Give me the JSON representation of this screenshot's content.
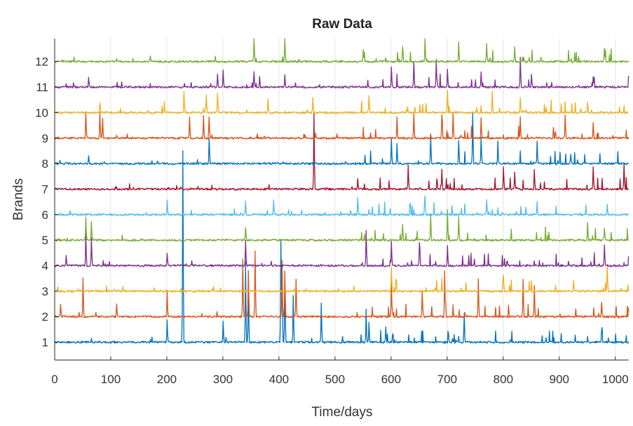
{
  "chart_data": {
    "type": "line",
    "title": "Raw Data",
    "xlabel": "Time/days",
    "ylabel": "Brands",
    "xlim": [
      0,
      1024
    ],
    "ylim": [
      0.3,
      12.9
    ],
    "xticks": [
      "0",
      "100",
      "200",
      "300",
      "400",
      "500",
      "600",
      "700",
      "800",
      "900",
      "1000"
    ],
    "yticks": [
      "1",
      "2",
      "3",
      "4",
      "5",
      "6",
      "7",
      "8",
      "9",
      "10",
      "11",
      "12"
    ],
    "grid": "horizontal",
    "n_days": 1024,
    "series": [
      {
        "baseline": 1,
        "color": "#0072BD",
        "spikes": [
          [
            228,
            7.5
          ],
          [
            340,
            3.2
          ],
          [
            345,
            2.2
          ],
          [
            403,
            4.0
          ],
          [
            405,
            3.0
          ],
          [
            410,
            2.5
          ],
          [
            425,
            1.8
          ],
          [
            475,
            1.5
          ],
          [
            555,
            1.0
          ],
          [
            560,
            0.8
          ],
          [
            590,
            0.6
          ],
          [
            200,
            0.9
          ],
          [
            300,
            0.8
          ],
          [
            730,
            0.7
          ],
          [
            975,
            0.5
          ]
        ]
      },
      {
        "baseline": 2,
        "color": "#D95319",
        "spikes": [
          [
            50,
            1.5
          ],
          [
            200,
            1.0
          ],
          [
            335,
            2.2
          ],
          [
            345,
            1.8
          ],
          [
            357,
            2.6
          ],
          [
            405,
            2.2
          ],
          [
            410,
            1.8
          ],
          [
            430,
            1.5
          ],
          [
            600,
            1.4
          ],
          [
            655,
            1.0
          ],
          [
            695,
            1.8
          ],
          [
            755,
            1.5
          ],
          [
            835,
            1.5
          ],
          [
            855,
            1.2
          ],
          [
            975,
            0.6
          ],
          [
            10,
            0.5
          ],
          [
            110,
            0.5
          ]
        ]
      },
      {
        "baseline": 3,
        "color": "#EDB120",
        "spikes": [
          [
            600,
            0.9
          ],
          [
            800,
            0.6
          ],
          [
            925,
            0.4
          ],
          [
            985,
            1.0
          ]
        ]
      },
      {
        "baseline": 4,
        "color": "#7E2F8E",
        "spikes": [
          [
            55,
            1.3
          ],
          [
            65,
            1.1
          ],
          [
            340,
            1.0
          ],
          [
            555,
            1.4
          ],
          [
            600,
            1.0
          ],
          [
            650,
            0.9
          ],
          [
            700,
            0.8
          ],
          [
            980,
            0.8
          ],
          [
            200,
            0.5
          ],
          [
            20,
            0.4
          ]
        ]
      },
      {
        "baseline": 5,
        "color": "#77AC30",
        "spikes": [
          [
            55,
            0.9
          ],
          [
            65,
            0.7
          ],
          [
            340,
            0.5
          ],
          [
            620,
            0.6
          ],
          [
            670,
            1.0
          ],
          [
            700,
            1.2
          ],
          [
            720,
            0.9
          ],
          [
            950,
            0.7
          ],
          [
            980,
            0.5
          ]
        ]
      },
      {
        "baseline": 6,
        "color": "#4DBEEE",
        "spikes": [
          [
            200,
            0.6
          ],
          [
            340,
            0.5
          ],
          [
            390,
            0.6
          ],
          [
            540,
            0.7
          ],
          [
            660,
            0.7
          ],
          [
            770,
            0.6
          ],
          [
            860,
            0.5
          ],
          [
            985,
            0.4
          ]
        ]
      },
      {
        "baseline": 7,
        "color": "#A2142F",
        "spikes": [
          [
            462,
            3.0
          ],
          [
            540,
            0.4
          ],
          [
            630,
            0.9
          ],
          [
            690,
            0.8
          ],
          [
            800,
            0.9
          ],
          [
            820,
            0.7
          ],
          [
            855,
            0.8
          ],
          [
            960,
            0.9
          ],
          [
            1015,
            1.0
          ]
        ]
      },
      {
        "baseline": 8,
        "color": "#0072BD",
        "spikes": [
          [
            60,
            0.3
          ],
          [
            275,
            1.0
          ],
          [
            600,
            1.0
          ],
          [
            610,
            0.8
          ],
          [
            670,
            1.1
          ],
          [
            720,
            0.9
          ],
          [
            745,
            2.0
          ],
          [
            760,
            1.0
          ],
          [
            790,
            0.9
          ],
          [
            860,
            0.9
          ],
          [
            920,
            0.4
          ]
        ]
      },
      {
        "baseline": 9,
        "color": "#D95319",
        "spikes": [
          [
            55,
            1.0
          ],
          [
            80,
            1.0
          ],
          [
            85,
            0.8
          ],
          [
            240,
            0.8
          ],
          [
            265,
            0.9
          ],
          [
            275,
            0.8
          ],
          [
            610,
            0.8
          ],
          [
            640,
            1.0
          ],
          [
            690,
            0.9
          ],
          [
            710,
            1.0
          ],
          [
            760,
            0.8
          ],
          [
            830,
            0.8
          ],
          [
            910,
            0.9
          ],
          [
            960,
            0.6
          ]
        ]
      },
      {
        "baseline": 10,
        "color": "#EDB120",
        "spikes": [
          [
            80,
            0.4
          ],
          [
            195,
            0.4
          ],
          [
            230,
            0.8
          ],
          [
            270,
            0.7
          ],
          [
            290,
            0.8
          ],
          [
            380,
            0.5
          ],
          [
            460,
            0.6
          ],
          [
            560,
            0.7
          ],
          [
            700,
            0.9
          ],
          [
            780,
            0.8
          ],
          [
            830,
            0.6
          ],
          [
            950,
            0.4
          ]
        ]
      },
      {
        "baseline": 11,
        "color": "#7E2F8E",
        "spikes": [
          [
            60,
            0.4
          ],
          [
            290,
            0.5
          ],
          [
            300,
            0.7
          ],
          [
            355,
            0.6
          ],
          [
            365,
            0.4
          ],
          [
            410,
            0.5
          ],
          [
            600,
            0.8
          ],
          [
            640,
            1.0
          ],
          [
            680,
            1.1
          ],
          [
            700,
            0.7
          ],
          [
            760,
            0.6
          ],
          [
            830,
            1.2
          ],
          [
            850,
            0.5
          ],
          [
            960,
            0.4
          ]
        ]
      },
      {
        "baseline": 12,
        "color": "#77AC30",
        "spikes": [
          [
            355,
            1.2
          ],
          [
            410,
            1.0
          ],
          [
            170,
            0.2
          ],
          [
            550,
            0.5
          ],
          [
            620,
            0.6
          ],
          [
            660,
            1.0
          ],
          [
            720,
            0.8
          ],
          [
            770,
            0.7
          ],
          [
            820,
            0.6
          ],
          [
            980,
            0.5
          ]
        ]
      }
    ]
  }
}
